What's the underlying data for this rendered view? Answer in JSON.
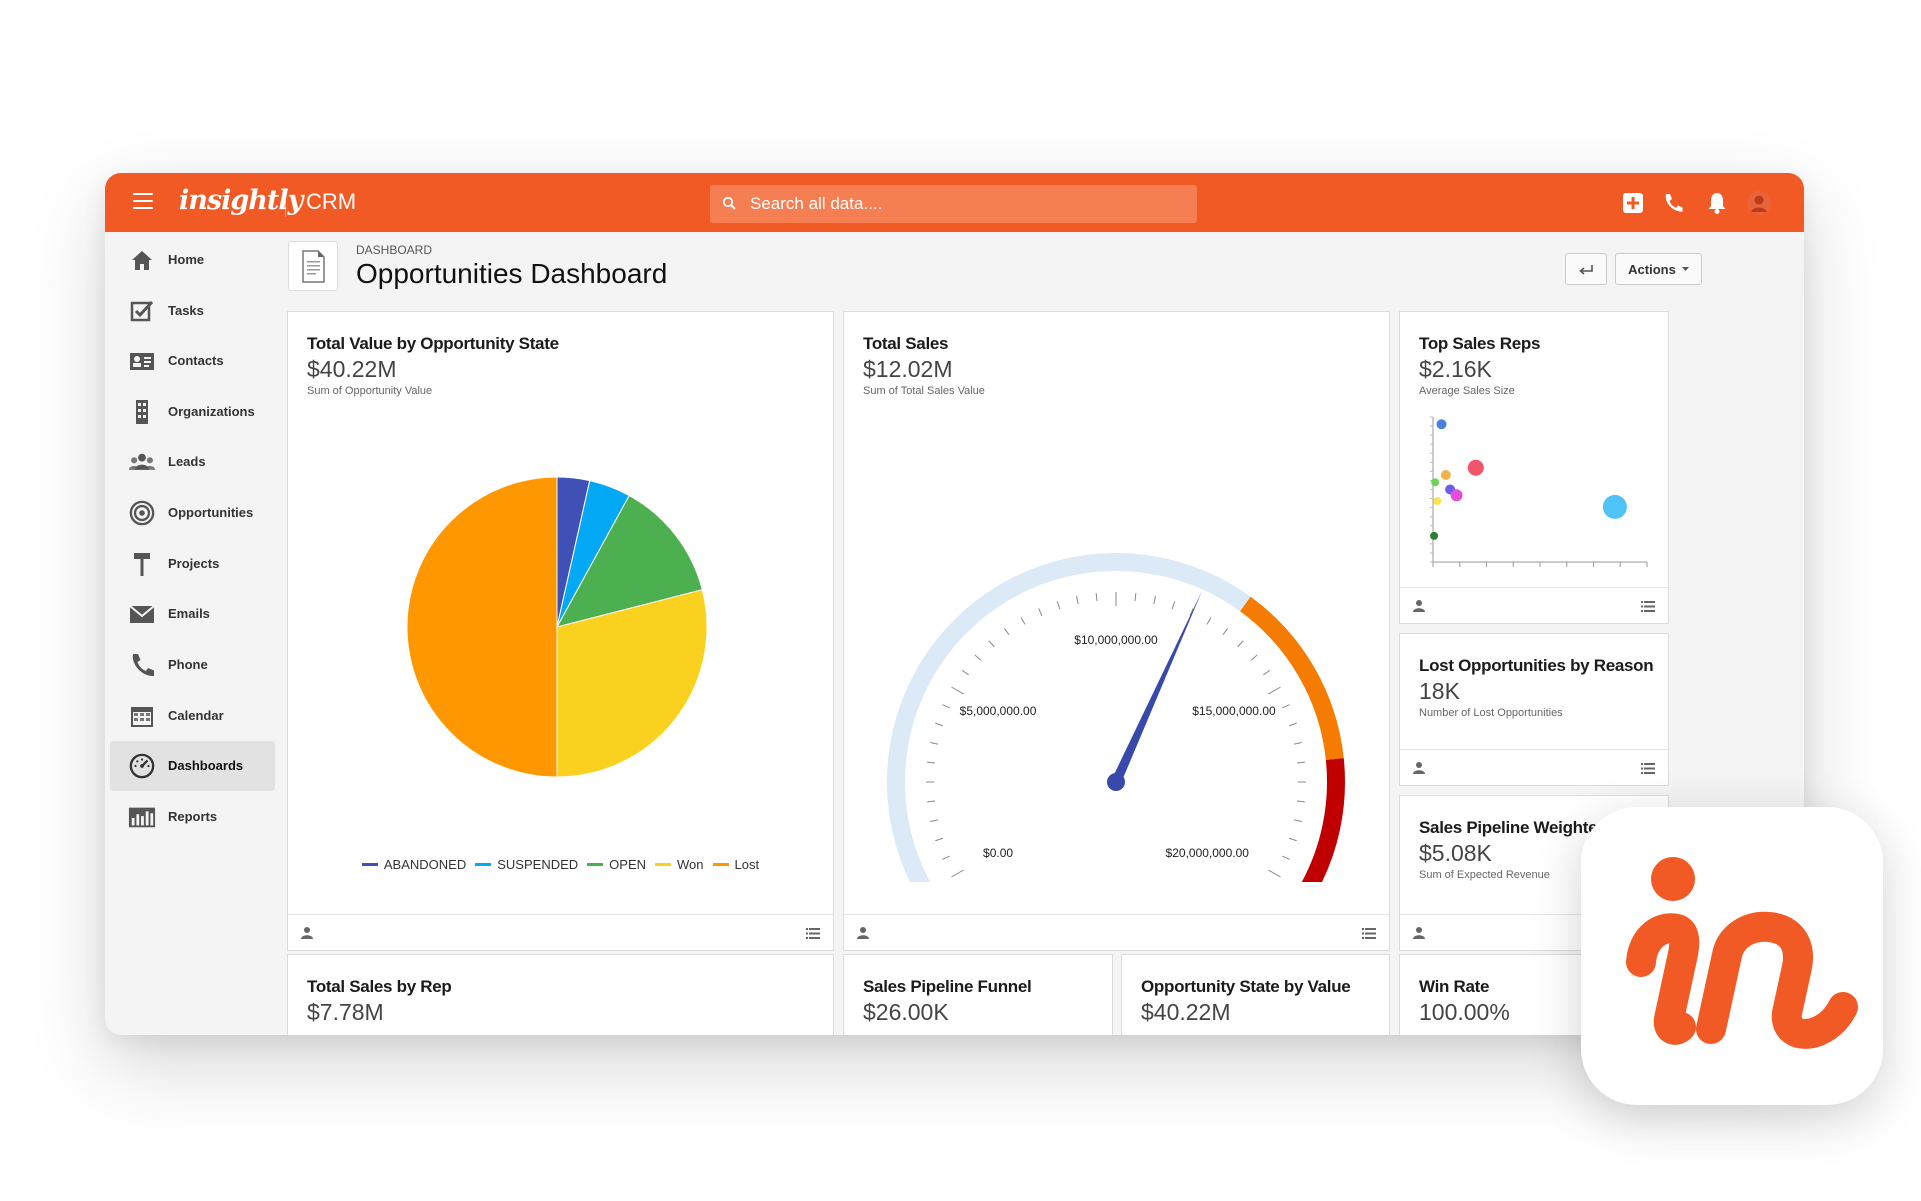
{
  "topbar": {
    "brand": "insightly",
    "app": "CRM",
    "search_placeholder": "Search all data...."
  },
  "sidebar": {
    "items": [
      {
        "label": "Home",
        "icon": "home-icon"
      },
      {
        "label": "Tasks",
        "icon": "tasks-icon"
      },
      {
        "label": "Contacts",
        "icon": "contacts-icon"
      },
      {
        "label": "Organizations",
        "icon": "organizations-icon"
      },
      {
        "label": "Leads",
        "icon": "leads-icon"
      },
      {
        "label": "Opportunities",
        "icon": "opportunities-icon"
      },
      {
        "label": "Projects",
        "icon": "projects-icon"
      },
      {
        "label": "Emails",
        "icon": "emails-icon"
      },
      {
        "label": "Phone",
        "icon": "phone-icon"
      },
      {
        "label": "Calendar",
        "icon": "calendar-icon"
      },
      {
        "label": "Dashboards",
        "icon": "dashboards-icon",
        "active": true
      },
      {
        "label": "Reports",
        "icon": "reports-icon"
      }
    ]
  },
  "header": {
    "breadcrumb": "DASHBOARD",
    "title": "Opportunities Dashboard",
    "actions_label": "Actions"
  },
  "cards": {
    "total_value": {
      "title": "Total Value by Opportunity State",
      "value": "$40.22M",
      "subtitle": "Sum of Opportunity Value"
    },
    "total_sales": {
      "title": "Total Sales",
      "value": "$12.02M",
      "subtitle": "Sum of Total Sales Value"
    },
    "top_reps": {
      "title": "Top Sales Reps",
      "value": "$2.16K",
      "subtitle": "Average Sales Size"
    },
    "lost_opps": {
      "title": "Lost Opportunities by Reason",
      "value": "18K",
      "subtitle": "Number of Lost Opportunities"
    },
    "pipeline_weighted": {
      "title": "Sales Pipeline Weighted",
      "value": "$5.08K",
      "subtitle": "Sum of Expected Revenue"
    },
    "sales_by_rep": {
      "title": "Total Sales by Rep",
      "value": "$7.78M"
    },
    "funnel": {
      "title": "Sales Pipeline Funnel",
      "value": "$26.00K"
    },
    "state_by_value": {
      "title": "Opportunity State by Value",
      "value": "$40.22M"
    },
    "win_rate": {
      "title": "Win Rate",
      "value": "100.00%"
    }
  },
  "chart_data": [
    {
      "type": "pie",
      "categories": [
        "ABANDONED",
        "SUSPENDED",
        "OPEN",
        "Won",
        "Lost"
      ],
      "values": [
        3.5,
        4.5,
        13,
        29,
        50
      ],
      "colors": [
        "#3f51b5",
        "#03a9f4",
        "#4caf50",
        "#f9d11e",
        "#ff9800"
      ],
      "legend_position": "bottom"
    },
    {
      "type": "gauge",
      "value": 12020000,
      "min": 0,
      "max": 20000000,
      "tick_labels": [
        "$0.00",
        "$5,000,000.00",
        "$10,000,000.00",
        "$15,000,000.00",
        "$20,000,000.00"
      ],
      "bands": [
        {
          "from": 0,
          "to": 13000000,
          "color": "#dbeaf6"
        },
        {
          "from": 13000000,
          "to": 17000000,
          "color": "#f57c00"
        },
        {
          "from": 17000000,
          "to": 20000000,
          "color": "#c00000"
        }
      ]
    },
    {
      "type": "scatter",
      "points": [
        {
          "x": 0.4,
          "y": 95,
          "r": 5,
          "color": "#4a7fe0"
        },
        {
          "x": 2.0,
          "y": 65,
          "r": 8,
          "color": "#f2546b"
        },
        {
          "x": 0.6,
          "y": 60,
          "r": 5,
          "color": "#f4b24a"
        },
        {
          "x": 0.1,
          "y": 55,
          "r": 4,
          "color": "#6fd35a"
        },
        {
          "x": 0.8,
          "y": 50,
          "r": 5,
          "color": "#6c5ce7"
        },
        {
          "x": 1.1,
          "y": 46,
          "r": 6,
          "color": "#e34fd6"
        },
        {
          "x": 0.2,
          "y": 42,
          "r": 4,
          "color": "#f5e84a"
        },
        {
          "x": 8.5,
          "y": 38,
          "r": 12,
          "color": "#4fc3f7"
        },
        {
          "x": 0.05,
          "y": 18,
          "r": 4,
          "color": "#2e7d32"
        }
      ]
    }
  ],
  "badge": {
    "letters": "in"
  }
}
